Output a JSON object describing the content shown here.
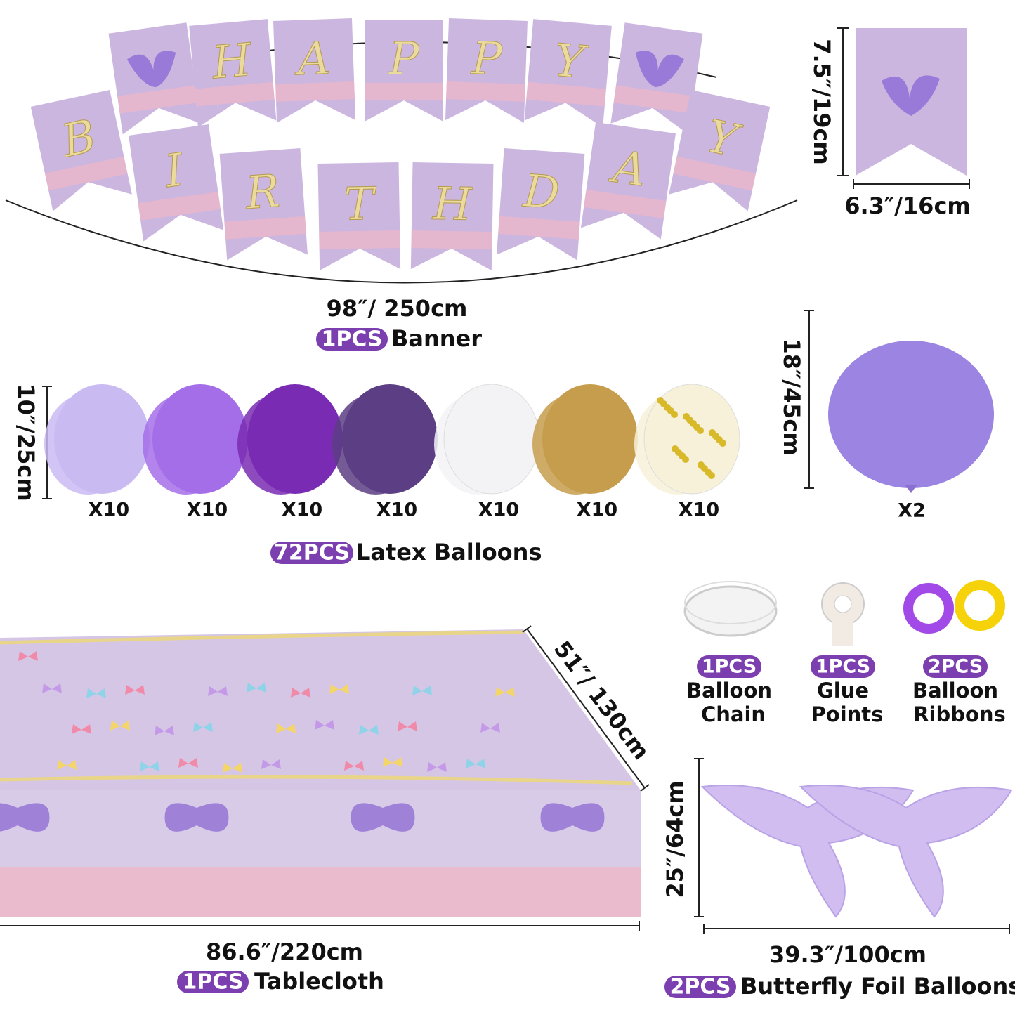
{
  "banner": {
    "letters_top": [
      "H",
      "A",
      "P",
      "P",
      "Y"
    ],
    "letters_bottom": [
      "B",
      "I",
      "R",
      "T",
      "H",
      "D",
      "A",
      "Y"
    ],
    "flag_height": "7.5″/19cm",
    "flag_width": "6.3″/16cm",
    "length": "98″/ 250cm",
    "qty": "1PCS",
    "name": "Banner"
  },
  "latex_balloons": {
    "size": "10″/25cm",
    "counts": [
      "X10",
      "X10",
      "X10",
      "X10",
      "X10",
      "X10",
      "X10"
    ],
    "qty": "72PCS",
    "name": "Latex Balloons"
  },
  "large_balloon": {
    "size": "18″/45cm",
    "count": "X2"
  },
  "accessories": [
    {
      "qty": "1PCS",
      "name_lines": [
        "Balloon",
        "Chain"
      ]
    },
    {
      "qty": "1PCS",
      "name_lines": [
        "Glue",
        "Points"
      ]
    },
    {
      "qty": "2PCS",
      "name_lines": [
        "Balloon",
        "Ribbons"
      ]
    }
  ],
  "tablecloth": {
    "depth": "51″/ 130cm",
    "width": "86.6″/220cm",
    "qty": "1PCS",
    "name": "Tablecloth"
  },
  "foil_balloons": {
    "height": "25″/64cm",
    "width": "39.3″/100cm",
    "qty": "2PCS",
    "name": "Butterfly Foil Balloons"
  }
}
